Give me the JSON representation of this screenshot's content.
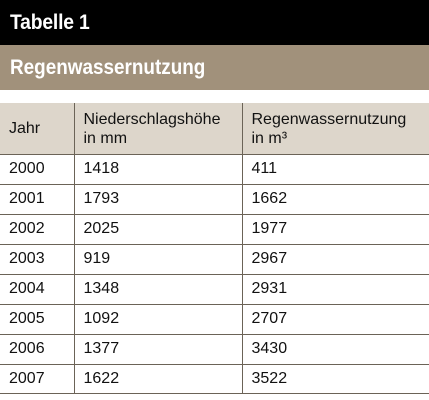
{
  "table_label": "Tabelle 1",
  "table_title": "Regenwassernutzung",
  "colors": {
    "title_bar": "#000000",
    "subtitle_bar": "#a1917b",
    "header_row": "#ddd6cb",
    "grid_lines": "#6b6357"
  },
  "columns": {
    "year": "Jahr",
    "precip_line1": "Niederschlagshöhe",
    "precip_line2": "in mm",
    "rain_line1": "Regenwassernutzung",
    "rain_line2": "in m³"
  },
  "rows": [
    {
      "year": "2000",
      "precipitation": "1418",
      "rainwater": "411"
    },
    {
      "year": "2001",
      "precipitation": "1793",
      "rainwater": "1662"
    },
    {
      "year": "2002",
      "precipitation": "2025",
      "rainwater": "1977"
    },
    {
      "year": "2003",
      "precipitation": "919",
      "rainwater": "2967"
    },
    {
      "year": "2004",
      "precipitation": "1348",
      "rainwater": "2931"
    },
    {
      "year": "2005",
      "precipitation": "1092",
      "rainwater": "2707"
    },
    {
      "year": "2006",
      "precipitation": "1377",
      "rainwater": "3430"
    },
    {
      "year": "2007",
      "precipitation": "1622",
      "rainwater": "3522"
    }
  ]
}
